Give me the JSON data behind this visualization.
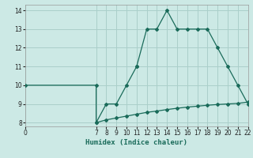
{
  "xlabel": "Humidex (Indice chaleur)",
  "bg_color": "#cce9e5",
  "grid_color": "#aacfca",
  "line_color": "#1a6b5a",
  "xlim": [
    0,
    22
  ],
  "ylim": [
    7.8,
    14.3
  ],
  "yticks": [
    8,
    9,
    10,
    11,
    12,
    13,
    14
  ],
  "xticks": [
    0,
    7,
    8,
    9,
    10,
    11,
    12,
    13,
    14,
    15,
    16,
    17,
    18,
    19,
    20,
    21,
    22
  ],
  "upper_x": [
    0,
    7,
    7,
    8,
    9,
    10,
    11,
    11,
    12,
    13,
    14,
    15,
    16,
    17,
    18,
    19,
    20,
    21,
    22
  ],
  "upper_y": [
    10,
    10,
    8,
    9,
    9,
    10,
    11,
    11,
    13,
    13,
    14,
    13,
    13,
    13,
    13,
    12,
    11,
    10,
    9
  ],
  "lower_x": [
    7,
    8,
    9,
    10,
    11,
    12,
    13,
    14,
    15,
    16,
    17,
    18,
    19,
    20,
    21,
    22
  ],
  "lower_y": [
    8.0,
    8.15,
    8.25,
    8.35,
    8.45,
    8.55,
    8.62,
    8.7,
    8.77,
    8.83,
    8.88,
    8.93,
    8.97,
    9.0,
    9.03,
    9.1
  ],
  "markersize": 2.0,
  "linewidth": 0.9,
  "xlabel_fontsize": 6.5,
  "tick_fontsize": 5.5
}
